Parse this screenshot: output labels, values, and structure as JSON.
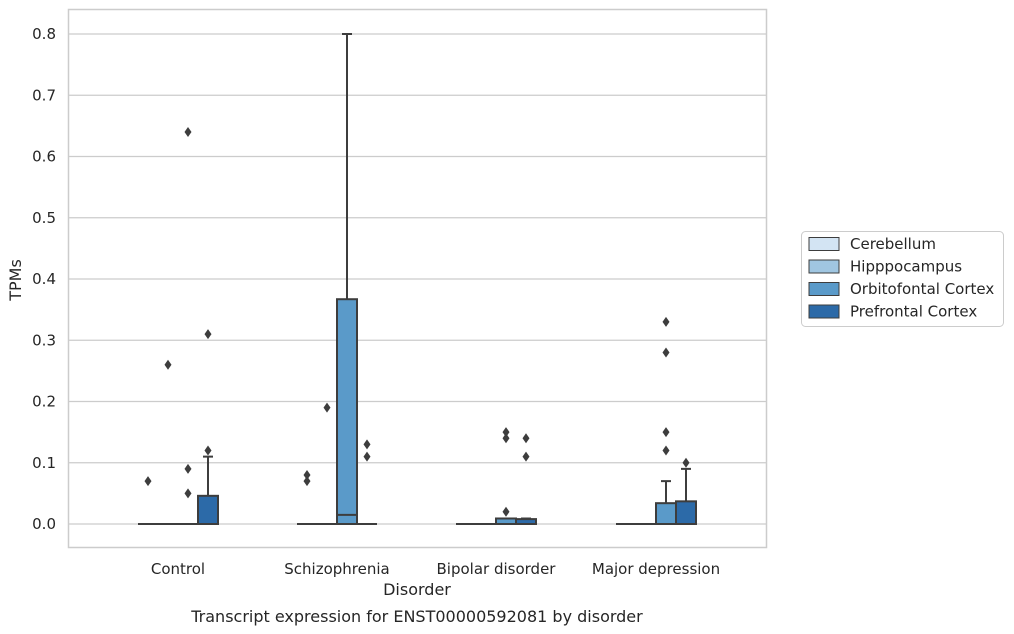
{
  "chart_data": {
    "type": "box",
    "title": "Transcript expression for ENST00000592081 by disorder",
    "xlabel": "Disorder",
    "ylabel": "TPMs",
    "ylim": [
      -0.04,
      0.84
    ],
    "yticks": [
      0.0,
      0.1,
      0.2,
      0.3,
      0.4,
      0.5,
      0.6,
      0.7,
      0.8
    ],
    "ytick_labels": [
      "0.0",
      "0.1",
      "0.2",
      "0.3",
      "0.4",
      "0.5",
      "0.6",
      "0.7",
      "0.8"
    ],
    "grid": true,
    "legend_position": "right",
    "categories": [
      "Control",
      "Schizophrenia",
      "Bipolar disorder",
      "Major depression"
    ],
    "series": [
      {
        "name": "Cerebellum",
        "color": "#d3e4f3",
        "boxes": [
          {
            "q1": 0,
            "median": 0,
            "q3": 0,
            "whisker_low": 0,
            "whisker_high": 0,
            "outliers": [
              0.07
            ]
          },
          {
            "q1": 0,
            "median": 0,
            "q3": 0,
            "whisker_low": 0,
            "whisker_high": 0,
            "outliers": [
              0.07,
              0.08
            ]
          },
          {
            "q1": 0,
            "median": 0,
            "q3": 0,
            "whisker_low": 0,
            "whisker_high": 0,
            "outliers": []
          },
          {
            "q1": 0,
            "median": 0,
            "q3": 0,
            "whisker_low": 0,
            "whisker_high": 0,
            "outliers": []
          }
        ]
      },
      {
        "name": "Hipppocampus",
        "color": "#a0c6e1",
        "boxes": [
          {
            "q1": 0,
            "median": 0,
            "q3": 0,
            "whisker_low": 0,
            "whisker_high": 0,
            "outliers": [
              0.26
            ]
          },
          {
            "q1": 0,
            "median": 0,
            "q3": 0,
            "whisker_low": 0,
            "whisker_high": 0,
            "outliers": [
              0.19
            ]
          },
          {
            "q1": 0,
            "median": 0,
            "q3": 0,
            "whisker_low": 0,
            "whisker_high": 0,
            "outliers": []
          },
          {
            "q1": 0,
            "median": 0,
            "q3": 0,
            "whisker_low": 0,
            "whisker_high": 0,
            "outliers": []
          }
        ]
      },
      {
        "name": "Orbitofontal Cortex",
        "color": "#5a9ac9",
        "boxes": [
          {
            "q1": 0,
            "median": 0,
            "q3": 0,
            "whisker_low": 0,
            "whisker_high": 0,
            "outliers": [
              0.05,
              0.09,
              0.64
            ]
          },
          {
            "q1": 0,
            "median": 0.015,
            "q3": 0.367,
            "whisker_low": 0,
            "whisker_high": 0.8,
            "outliers": []
          },
          {
            "q1": 0,
            "median": 0,
            "q3": 0.009,
            "whisker_low": 0,
            "whisker_high": 0.009,
            "outliers": [
              0.02,
              0.14,
              0.15
            ]
          },
          {
            "q1": 0,
            "median": 0,
            "q3": 0.034,
            "whisker_low": 0,
            "whisker_high": 0.07,
            "outliers": [
              0.12,
              0.15,
              0.28,
              0.33
            ]
          }
        ]
      },
      {
        "name": "Prefrontal Cortex",
        "color": "#2c6aa8",
        "boxes": [
          {
            "q1": 0,
            "median": 0,
            "q3": 0.046,
            "whisker_low": 0,
            "whisker_high": 0.11,
            "outliers": [
              0.12,
              0.31
            ]
          },
          {
            "q1": 0,
            "median": 0,
            "q3": 0,
            "whisker_low": 0,
            "whisker_high": 0,
            "outliers": [
              0.11,
              0.13
            ]
          },
          {
            "q1": 0,
            "median": 0,
            "q3": 0.008,
            "whisker_low": 0,
            "whisker_high": 0.009,
            "outliers": [
              0.11,
              0.14
            ]
          },
          {
            "q1": 0,
            "median": 0,
            "q3": 0.037,
            "whisker_low": 0,
            "whisker_high": 0.09,
            "outliers": [
              0.1
            ]
          }
        ]
      }
    ]
  }
}
